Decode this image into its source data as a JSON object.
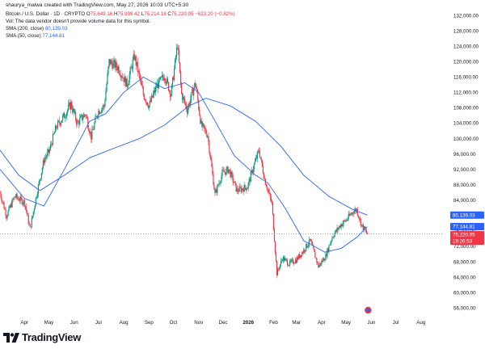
{
  "attribution": "shaurya_malwa created with TradingView.com, May 27, 2026 10:03 UTC+5:30",
  "legend": {
    "symbol": "Bitcoin / U.S. Dollar · 1D · CRYPTO",
    "ohlc": [
      {
        "label": "O",
        "value": "75,649.16"
      },
      {
        "label": "H",
        "value": "75,998.42"
      },
      {
        "label": "L",
        "value": "75,214.18"
      },
      {
        "label": "C",
        "value": "75,220.95"
      }
    ],
    "change": "−623.20 (−0.82%)",
    "vol_note": "Vol: The data vendor doesn't provide volume data for this symbol.",
    "sma200_label": "SMA (200, close)",
    "sma200_value": "80,139.03",
    "sma50_label": "SMA (50, close)",
    "sma50_value": "77,144.81"
  },
  "brand": "TradingView",
  "colors": {
    "up": "#089981",
    "down": "#f23645",
    "sma": "#2962ff",
    "sma200_badge": "#2962ff",
    "sma50_badge": "#2962ff",
    "last_price_badge": "#f23645"
  },
  "chart_data": {
    "type": "candlestick",
    "yticks": [
      "56,000.00",
      "60,000.00",
      "64,000.00",
      "68,000.00",
      "72,000.00",
      "76,000.00",
      "80,000.00",
      "84,000.00",
      "88,000.00",
      "92,000.00",
      "96,000.00",
      "100,000.00",
      "104,000.00",
      "108,000.00",
      "112,000.00",
      "116,000.00",
      "120,000.00",
      "124,000.00",
      "128,000.00",
      "132,000.00"
    ],
    "ylim": [
      55000,
      133500
    ],
    "xticks": [
      {
        "label": "Apr",
        "date": "2025-04-01",
        "bold": false
      },
      {
        "label": "May",
        "date": "2025-05-01",
        "bold": false
      },
      {
        "label": "Jun",
        "date": "2025-06-01",
        "bold": false
      },
      {
        "label": "Jul",
        "date": "2025-07-01",
        "bold": false
      },
      {
        "label": "Aug",
        "date": "2025-08-01",
        "bold": false
      },
      {
        "label": "Sep",
        "date": "2025-09-01",
        "bold": false
      },
      {
        "label": "Oct",
        "date": "2025-10-01",
        "bold": false
      },
      {
        "label": "Nov",
        "date": "2025-11-01",
        "bold": false
      },
      {
        "label": "Dec",
        "date": "2025-12-01",
        "bold": false
      },
      {
        "label": "2026",
        "date": "2026-01-01",
        "bold": true
      },
      {
        "label": "Feb",
        "date": "2026-02-01",
        "bold": false
      },
      {
        "label": "Mar",
        "date": "2026-03-01",
        "bold": false
      },
      {
        "label": "Apr",
        "date": "2026-04-01",
        "bold": false
      },
      {
        "label": "May",
        "date": "2026-05-01",
        "bold": false
      },
      {
        "label": "Jun",
        "date": "2026-06-01",
        "bold": false
      },
      {
        "label": "Jul",
        "date": "2026-07-01",
        "bold": false
      },
      {
        "label": "Aug",
        "date": "2026-08-01",
        "bold": false
      }
    ],
    "xlim": [
      "2025-03-02",
      "2026-08-28"
    ],
    "price_path": [
      [
        "2025-03-02",
        86000
      ],
      [
        "2025-03-10",
        80000
      ],
      [
        "2025-03-20",
        85000
      ],
      [
        "2025-04-01",
        83500
      ],
      [
        "2025-04-08",
        76500
      ],
      [
        "2025-04-15",
        84500
      ],
      [
        "2025-04-25",
        94500
      ],
      [
        "2025-05-01",
        96500
      ],
      [
        "2025-05-10",
        103000
      ],
      [
        "2025-05-20",
        106000
      ],
      [
        "2025-05-28",
        109000
      ],
      [
        "2025-06-05",
        104000
      ],
      [
        "2025-06-15",
        106500
      ],
      [
        "2025-06-22",
        100500
      ],
      [
        "2025-06-30",
        107000
      ],
      [
        "2025-07-08",
        108500
      ],
      [
        "2025-07-14",
        120000
      ],
      [
        "2025-07-25",
        118500
      ],
      [
        "2025-08-05",
        114000
      ],
      [
        "2025-08-14",
        121500
      ],
      [
        "2025-08-25",
        111500
      ],
      [
        "2025-09-01",
        108500
      ],
      [
        "2025-09-10",
        113500
      ],
      [
        "2025-09-20",
        116500
      ],
      [
        "2025-09-28",
        111500
      ],
      [
        "2025-10-06",
        124500
      ],
      [
        "2025-10-11",
        111500
      ],
      [
        "2025-10-18",
        107500
      ],
      [
        "2025-10-28",
        114500
      ],
      [
        "2025-11-04",
        103500
      ],
      [
        "2025-11-12",
        101000
      ],
      [
        "2025-11-21",
        85500
      ],
      [
        "2025-11-30",
        91000
      ],
      [
        "2025-12-08",
        92000
      ],
      [
        "2025-12-18",
        86500
      ],
      [
        "2025-12-31",
        87500
      ],
      [
        "2026-01-07",
        92500
      ],
      [
        "2026-01-14",
        97000
      ],
      [
        "2026-01-21",
        89500
      ],
      [
        "2026-01-30",
        83000
      ],
      [
        "2026-02-05",
        65000
      ],
      [
        "2026-02-12",
        69000
      ],
      [
        "2026-02-20",
        67500
      ],
      [
        "2026-03-01",
        68500
      ],
      [
        "2026-03-10",
        71000
      ],
      [
        "2026-03-18",
        73500
      ],
      [
        "2026-03-28",
        66800
      ],
      [
        "2026-04-06",
        69500
      ],
      [
        "2026-04-14",
        74500
      ],
      [
        "2026-04-24",
        77500
      ],
      [
        "2026-05-02",
        79000
      ],
      [
        "2026-05-09",
        81000
      ],
      [
        "2026-05-14",
        81600
      ],
      [
        "2026-05-20",
        77500
      ],
      [
        "2026-05-27",
        75220
      ]
    ],
    "sma200_path": [
      [
        "2025-03-02",
        97000
      ],
      [
        "2025-03-25",
        90500
      ],
      [
        "2025-04-20",
        86500
      ],
      [
        "2025-05-20",
        90500
      ],
      [
        "2025-06-20",
        95000
      ],
      [
        "2025-07-20",
        97500
      ],
      [
        "2025-08-20",
        100000
      ],
      [
        "2025-09-20",
        103500
      ],
      [
        "2025-10-20",
        108500
      ],
      [
        "2025-11-10",
        110500
      ],
      [
        "2025-12-10",
        108500
      ],
      [
        "2026-01-10",
        104500
      ],
      [
        "2026-02-10",
        98000
      ],
      [
        "2026-03-10",
        90500
      ],
      [
        "2026-04-10",
        85000
      ],
      [
        "2026-05-10",
        81500
      ],
      [
        "2026-05-27",
        80139
      ]
    ],
    "sma50_path": [
      [
        "2025-03-02",
        92000
      ],
      [
        "2025-04-01",
        84500
      ],
      [
        "2025-04-25",
        82500
      ],
      [
        "2025-05-20",
        92000
      ],
      [
        "2025-06-20",
        104500
      ],
      [
        "2025-07-10",
        106500
      ],
      [
        "2025-08-01",
        112000
      ],
      [
        "2025-08-25",
        116000
      ],
      [
        "2025-09-20",
        113000
      ],
      [
        "2025-10-15",
        114500
      ],
      [
        "2025-11-01",
        112000
      ],
      [
        "2025-11-20",
        105000
      ],
      [
        "2025-12-15",
        95500
      ],
      [
        "2026-01-10",
        90500
      ],
      [
        "2026-01-25",
        88500
      ],
      [
        "2026-02-15",
        82000
      ],
      [
        "2026-03-10",
        73500
      ],
      [
        "2026-04-05",
        70500
      ],
      [
        "2026-04-25",
        71500
      ],
      [
        "2026-05-15",
        74500
      ],
      [
        "2026-05-27",
        77145
      ]
    ],
    "badges": [
      {
        "name": "sma200-badge",
        "label": "80,139.03",
        "price": 80139,
        "color": "#2962ff"
      },
      {
        "name": "sma50-badge",
        "label": "77,144.81",
        "price": 77145,
        "color": "#2962ff"
      },
      {
        "name": "last-price-badge",
        "label": "75,220.95",
        "price": 75221,
        "color": "#f23645",
        "sub": "19:26:53"
      }
    ]
  }
}
